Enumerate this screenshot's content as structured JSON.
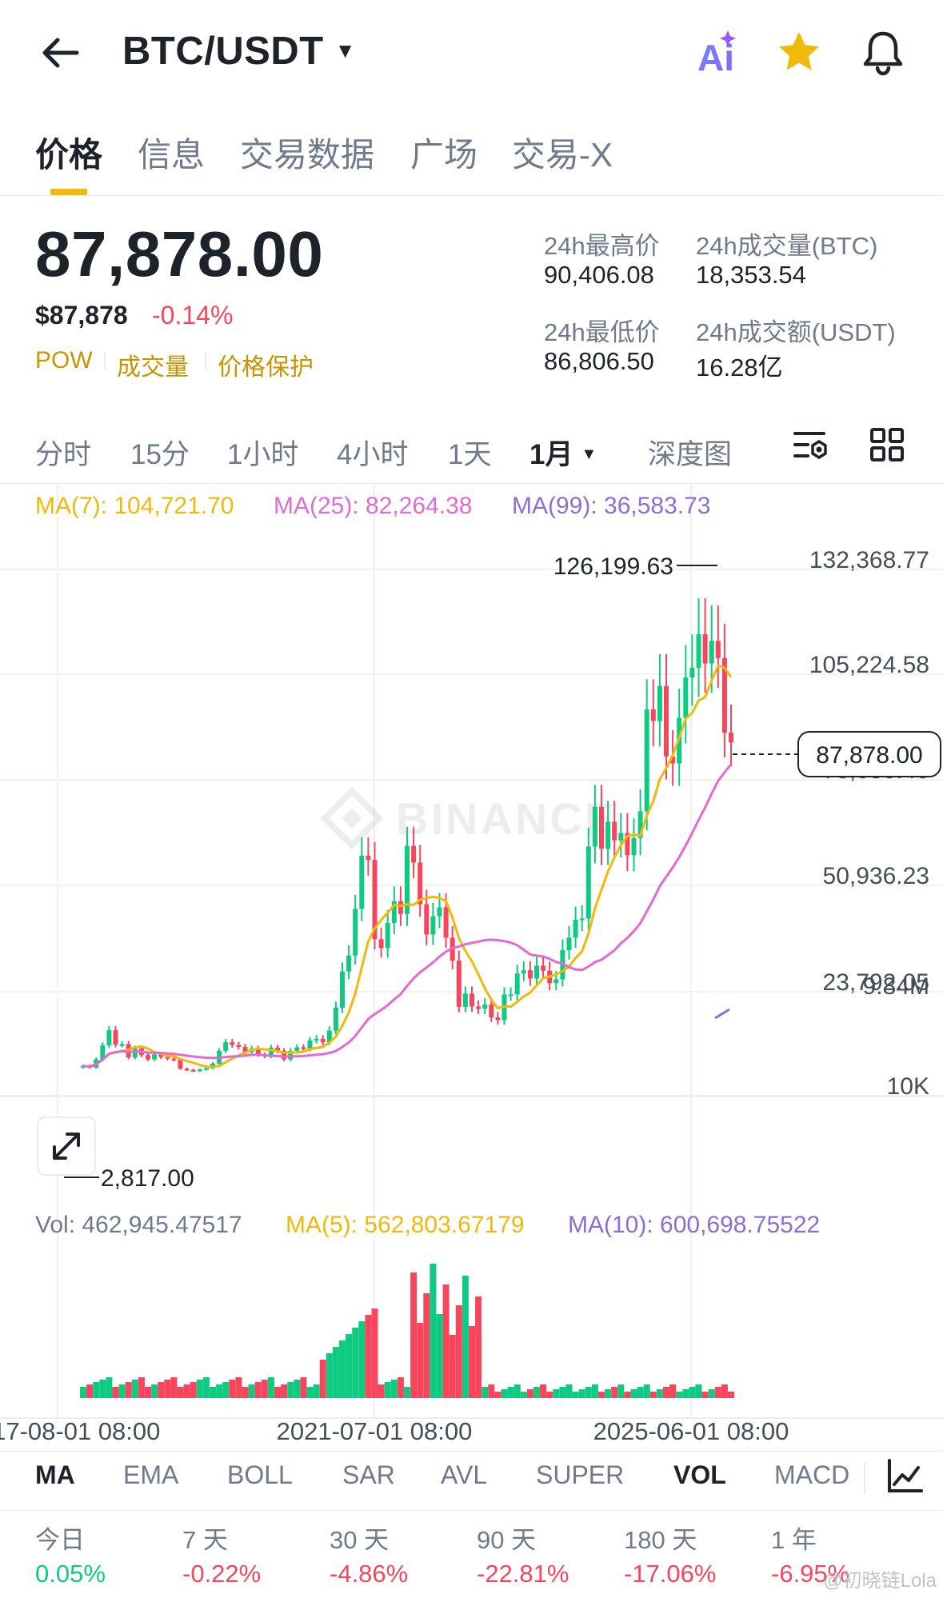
{
  "header": {
    "pair": "BTC/USDT",
    "icons": [
      "arrow-left-icon",
      "caret-down-icon",
      "ai-icon",
      "star-icon",
      "bell-icon"
    ],
    "ai_label": "Ai"
  },
  "tabs": [
    {
      "label": "价格",
      "active": true
    },
    {
      "label": "信息",
      "active": false
    },
    {
      "label": "交易数据",
      "active": false
    },
    {
      "label": "广场",
      "active": false
    },
    {
      "label": "交易-X",
      "active": false
    }
  ],
  "price": {
    "last": "87,878.00",
    "usd": "$87,878",
    "change": "-0.14%",
    "tags": [
      "POW",
      "成交量",
      "价格保护"
    ]
  },
  "stats": {
    "high_label": "24h最高价",
    "high": "90,406.08",
    "vol_btc_label": "24h成交量(BTC)",
    "vol_btc": "18,353.54",
    "low_label": "24h最低价",
    "low": "86,806.50",
    "vol_usdt_label": "24h成交额(USDT)",
    "vol_usdt": "16.28亿"
  },
  "intervals": [
    {
      "label": "分时",
      "active": false
    },
    {
      "label": "15分",
      "active": false
    },
    {
      "label": "1小时",
      "active": false
    },
    {
      "label": "4小时",
      "active": false
    },
    {
      "label": "1天",
      "active": false
    },
    {
      "label": "1月",
      "active": true
    },
    {
      "label": "深度图",
      "active": false
    }
  ],
  "ma_legend": {
    "ma7": "MA(7): 104,721.70",
    "ma25": "MA(25): 82,264.38",
    "ma99": "MA(99): 36,583.73"
  },
  "vol_legend": {
    "vol": "Vol: 462,945.47517",
    "ma5": "MA(5): 562,803.67179",
    "ma10": "MA(10): 600,698.75522"
  },
  "colors": {
    "up": "#0ecb81",
    "down": "#f6465d",
    "accent": "#f0b90b",
    "ma7": "#f0b90b",
    "ma25": "#e36ad1",
    "ma99": "#8d6fd1"
  },
  "watermark": "BINANCE",
  "chart_data": {
    "type": "candlestick",
    "price_axis_labels": [
      "132,368.77",
      "105,224.58",
      "78,080.40",
      "50,936.23",
      "23,792.05"
    ],
    "price_axis_values": [
      132368.77,
      105224.58,
      78080.4,
      50936.23,
      23792.05
    ],
    "current_price": "87,878.00",
    "max_label": "126,199.63",
    "min_label": "2,817.00",
    "volume_axis_labels": [
      "9.84M",
      "10K"
    ],
    "x_labels": [
      "2017-08-01 08:00",
      "2021-07-01 08:00",
      "2025-06-01 08:00"
    ],
    "candles": [
      {
        "o": 4300,
        "c": 4700
      },
      {
        "o": 4700,
        "c": 4300
      },
      {
        "o": 4300,
        "c": 6400
      },
      {
        "o": 6400,
        "c": 10000
      },
      {
        "o": 10000,
        "c": 13900
      },
      {
        "o": 13900,
        "c": 10200
      },
      {
        "o": 10200,
        "c": 10300
      },
      {
        "o": 10300,
        "c": 6900
      },
      {
        "o": 6900,
        "c": 9200
      },
      {
        "o": 9200,
        "c": 7500
      },
      {
        "o": 7500,
        "c": 6400
      },
      {
        "o": 6400,
        "c": 7700
      },
      {
        "o": 7700,
        "c": 7000
      },
      {
        "o": 7000,
        "c": 6600
      },
      {
        "o": 6600,
        "c": 6300
      },
      {
        "o": 6300,
        "c": 4000
      },
      {
        "o": 4000,
        "c": 3700
      },
      {
        "o": 3700,
        "c": 3400
      },
      {
        "o": 3400,
        "c": 3800
      },
      {
        "o": 3800,
        "c": 4100
      },
      {
        "o": 4100,
        "c": 5300
      },
      {
        "o": 5300,
        "c": 8600
      },
      {
        "o": 8600,
        "c": 10800
      },
      {
        "o": 10800,
        "c": 10100
      },
      {
        "o": 10100,
        "c": 9600
      },
      {
        "o": 9600,
        "c": 8300
      },
      {
        "o": 8300,
        "c": 9200
      },
      {
        "o": 9200,
        "c": 7600
      },
      {
        "o": 7600,
        "c": 7200
      },
      {
        "o": 7200,
        "c": 9400
      },
      {
        "o": 9400,
        "c": 8600
      },
      {
        "o": 8600,
        "c": 6400
      },
      {
        "o": 6400,
        "c": 8600
      },
      {
        "o": 8600,
        "c": 9500
      },
      {
        "o": 9500,
        "c": 9100
      },
      {
        "o": 9100,
        "c": 11300
      },
      {
        "o": 11300,
        "c": 11700
      },
      {
        "o": 11700,
        "c": 10800
      },
      {
        "o": 10800,
        "c": 13800
      },
      {
        "o": 13800,
        "c": 19700
      },
      {
        "o": 19700,
        "c": 29000
      },
      {
        "o": 29000,
        "c": 33100
      },
      {
        "o": 33100,
        "c": 45100
      },
      {
        "o": 45100,
        "c": 58800
      },
      {
        "o": 58800,
        "c": 57700
      },
      {
        "o": 57700,
        "c": 37300
      },
      {
        "o": 37300,
        "c": 35000
      },
      {
        "o": 35000,
        "c": 41500
      },
      {
        "o": 41500,
        "c": 47100
      },
      {
        "o": 47100,
        "c": 43800
      },
      {
        "o": 43800,
        "c": 61300
      },
      {
        "o": 61300,
        "c": 57000
      },
      {
        "o": 57000,
        "c": 46300
      },
      {
        "o": 46300,
        "c": 38500
      },
      {
        "o": 38500,
        "c": 43200
      },
      {
        "o": 43200,
        "c": 45500
      },
      {
        "o": 45500,
        "c": 37700
      },
      {
        "o": 37700,
        "c": 31800
      },
      {
        "o": 31800,
        "c": 19900
      },
      {
        "o": 19900,
        "c": 23300
      },
      {
        "o": 23300,
        "c": 20000
      },
      {
        "o": 20000,
        "c": 19400
      },
      {
        "o": 19400,
        "c": 20500
      },
      {
        "o": 20500,
        "c": 17200
      },
      {
        "o": 17200,
        "c": 16500
      },
      {
        "o": 16500,
        "c": 23100
      },
      {
        "o": 23100,
        "c": 23100
      },
      {
        "o": 23100,
        "c": 28500
      },
      {
        "o": 28500,
        "c": 29300
      },
      {
        "o": 29300,
        "c": 27200
      },
      {
        "o": 27200,
        "c": 30500
      },
      {
        "o": 30500,
        "c": 29200
      },
      {
        "o": 29200,
        "c": 26000
      },
      {
        "o": 26000,
        "c": 27000
      },
      {
        "o": 27000,
        "c": 34500
      },
      {
        "o": 34500,
        "c": 37700
      },
      {
        "o": 37700,
        "c": 42300
      },
      {
        "o": 42300,
        "c": 42600
      },
      {
        "o": 42600,
        "c": 61100
      },
      {
        "o": 61100,
        "c": 71300
      },
      {
        "o": 71300,
        "c": 60600
      },
      {
        "o": 60600,
        "c": 67500
      },
      {
        "o": 67500,
        "c": 62700
      },
      {
        "o": 62700,
        "c": 64600
      },
      {
        "o": 64600,
        "c": 58900
      },
      {
        "o": 58900,
        "c": 63300
      },
      {
        "o": 63300,
        "c": 70200
      },
      {
        "o": 70200,
        "c": 96400
      },
      {
        "o": 96400,
        "c": 93400
      },
      {
        "o": 93400,
        "c": 102400
      },
      {
        "o": 102400,
        "c": 84300
      },
      {
        "o": 84300,
        "c": 82500
      },
      {
        "o": 82500,
        "c": 94200
      },
      {
        "o": 94200,
        "c": 104600
      },
      {
        "o": 104600,
        "c": 107100
      },
      {
        "o": 107100,
        "c": 115700
      },
      {
        "o": 115700,
        "c": 108200
      },
      {
        "o": 108200,
        "c": 114000
      },
      {
        "o": 114000,
        "c": 109600
      },
      {
        "o": 109600,
        "c": 90400
      },
      {
        "o": 90400,
        "c": 87878
      }
    ]
  },
  "indicators": [
    {
      "label": "MA",
      "active": true
    },
    {
      "label": "EMA",
      "active": false
    },
    {
      "label": "BOLL",
      "active": false
    },
    {
      "label": "SAR",
      "active": false
    },
    {
      "label": "AVL",
      "active": false
    },
    {
      "label": "SUPER",
      "active": false
    },
    {
      "label": "VOL",
      "active": true
    },
    {
      "label": "MACD",
      "active": false
    }
  ],
  "performance": [
    {
      "label": "今日",
      "value": "0.05%",
      "dir": "up"
    },
    {
      "label": "7 天",
      "value": "-0.22%",
      "dir": "down"
    },
    {
      "label": "30 天",
      "value": "-4.86%",
      "dir": "down"
    },
    {
      "label": "90 天",
      "value": "-22.81%",
      "dir": "down"
    },
    {
      "label": "180 天",
      "value": "-17.06%",
      "dir": "down"
    },
    {
      "label": "1 年",
      "value": "-6.95%",
      "dir": "down"
    }
  ],
  "watermark_text": "@初晓链Lola"
}
